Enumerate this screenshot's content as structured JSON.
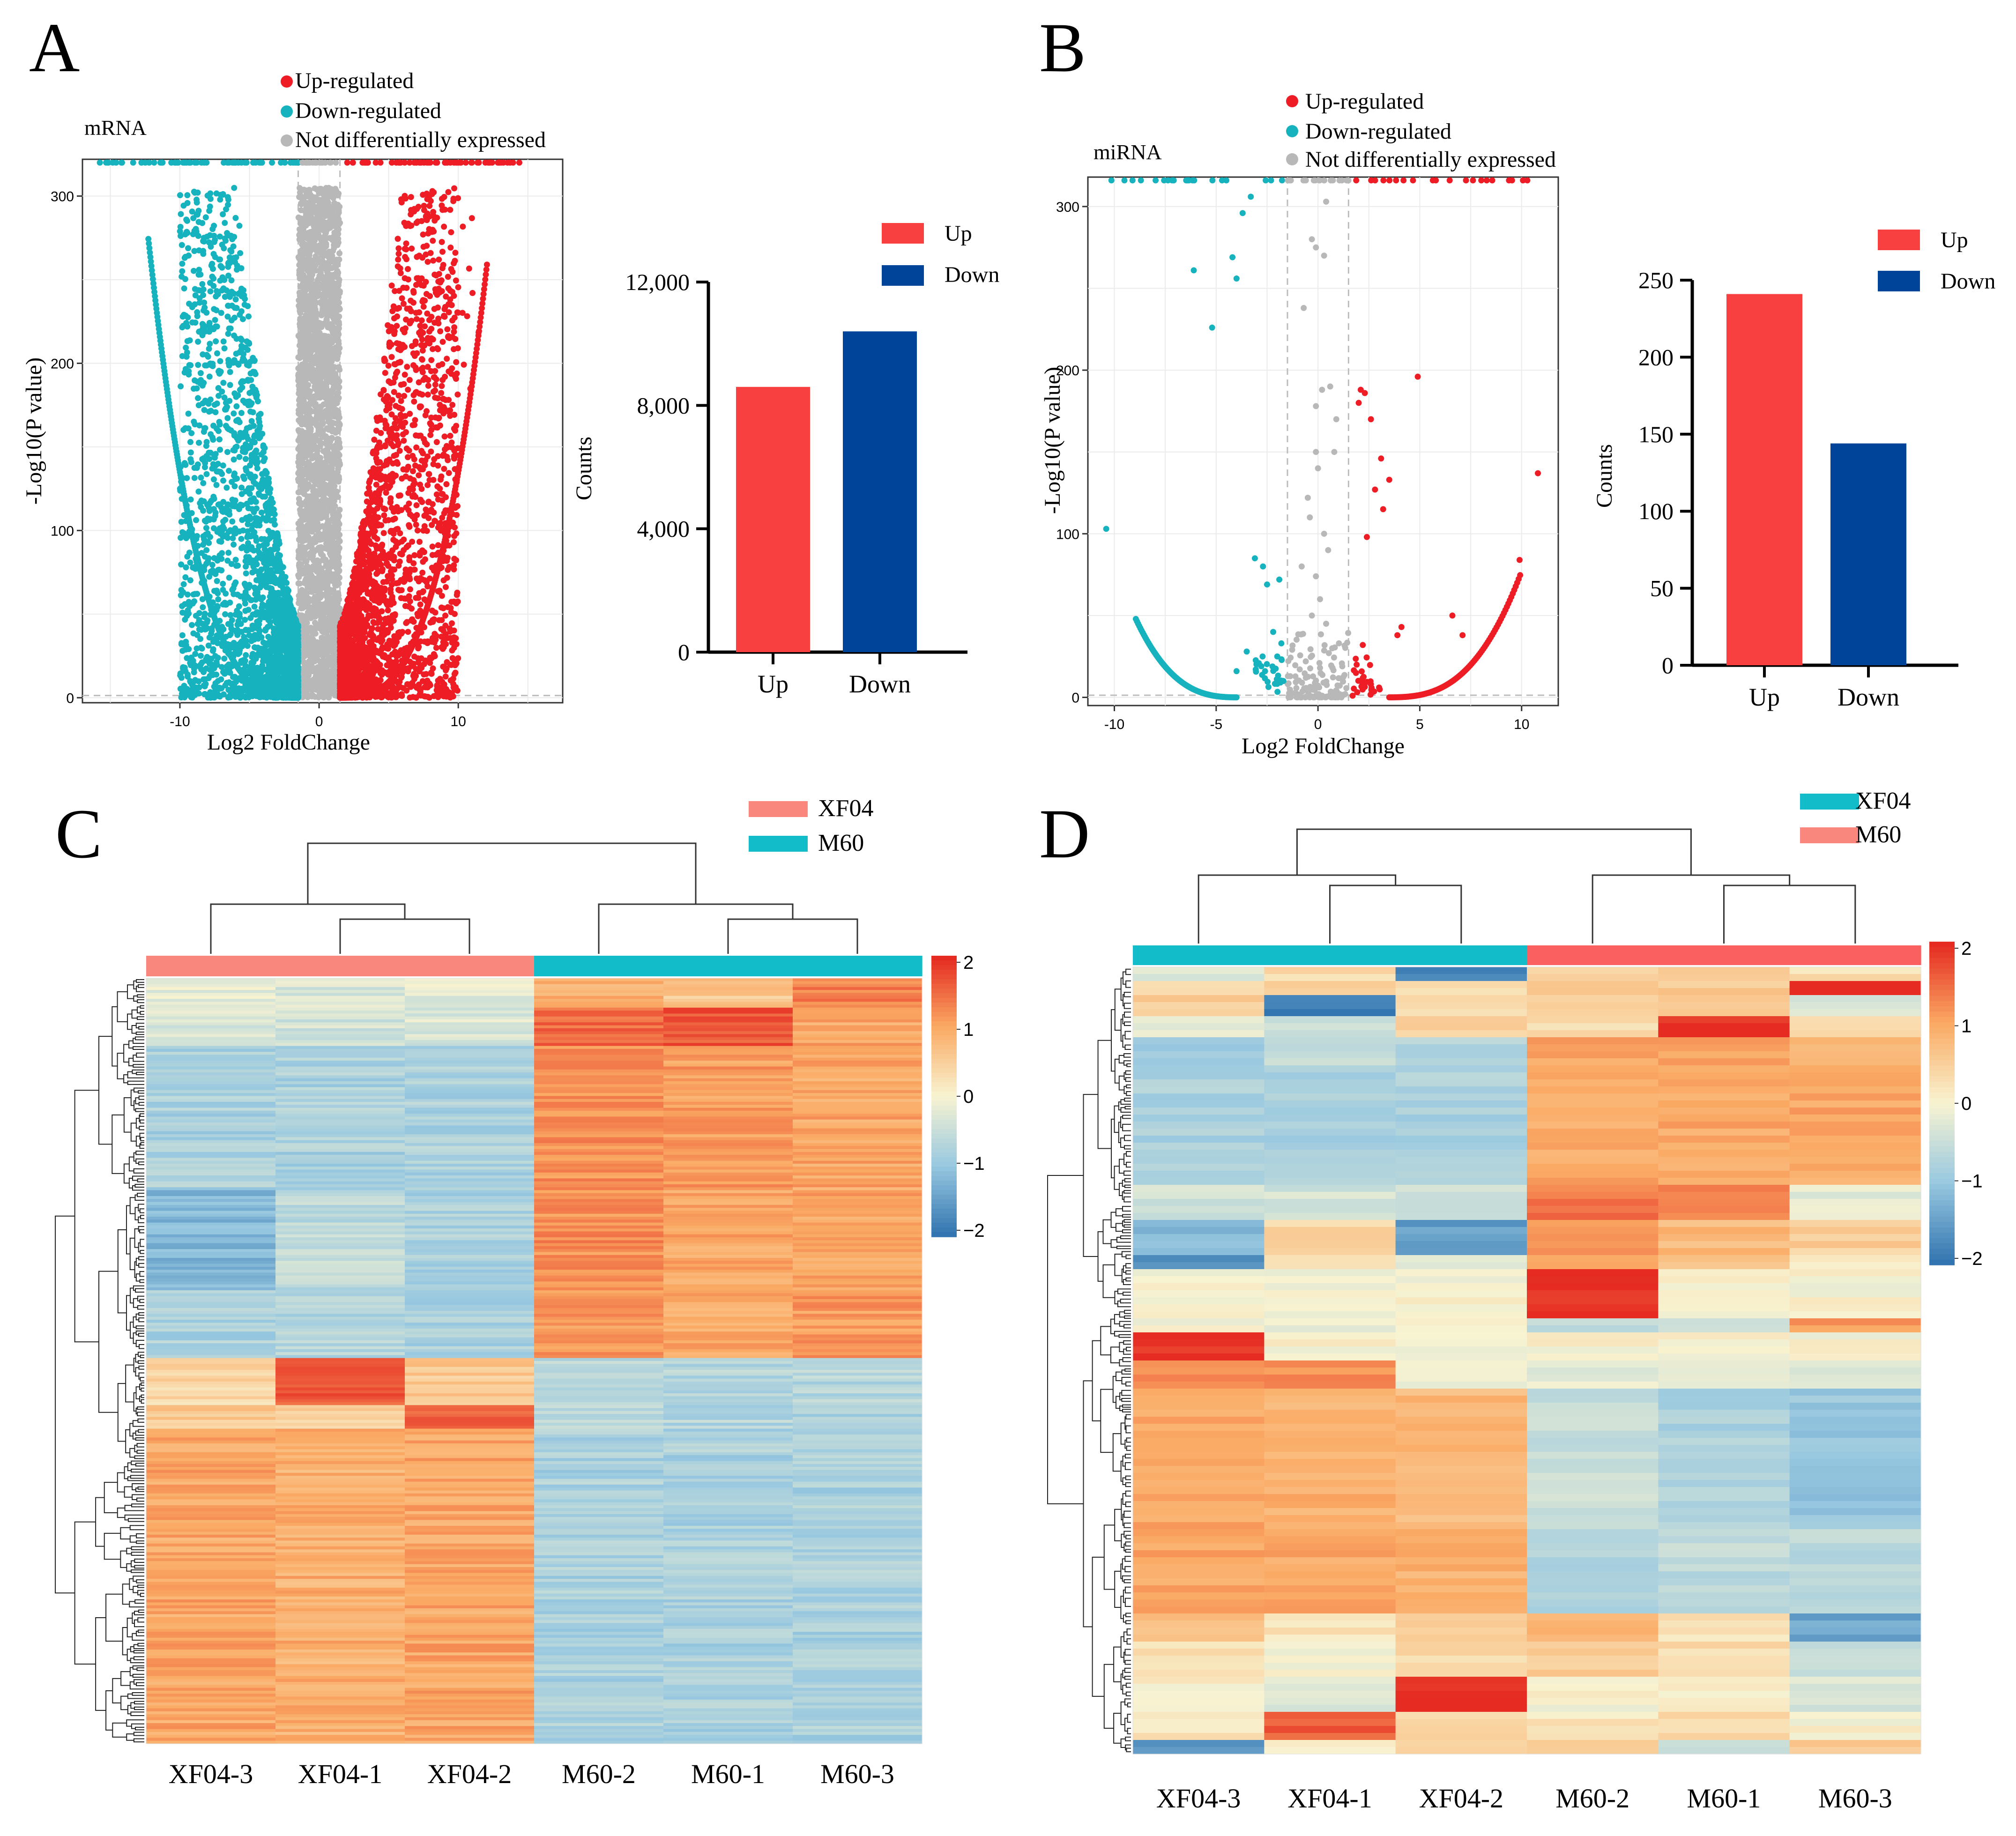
{
  "colors": {
    "up": "#ee1c25",
    "down": "#16b3bf",
    "ns": "#b8b8b8",
    "bar_up": "#f94040",
    "bar_down": "#00449a",
    "xf04_salmon": "#f9877e",
    "m60_teal": "#12bcc8",
    "grid": "#ebebeb",
    "threshold": "#bdbdbd"
  },
  "chart_data": [
    {
      "panel": "A",
      "type": "scatter",
      "title": "mRNA",
      "xlabel": "Log2 FoldChange",
      "ylabel": "-Log10(P value)",
      "xlim": [
        -17,
        17.5
      ],
      "ylim": [
        -3,
        322
      ],
      "xticks": [
        -10,
        0,
        10
      ],
      "yticks": [
        0,
        100,
        200,
        300
      ],
      "fc_threshold": 1.5,
      "legend": [
        "Up-regulated",
        "Down-regulated",
        "Not differentially expressed"
      ],
      "series": [
        {
          "name": "Up-regulated",
          "note": "log2FC > 1.5, dense cloud up to ~12 with upper boundary curve",
          "x_range": [
            1.5,
            14
          ],
          "y_range": [
            0,
            320
          ]
        },
        {
          "name": "Down-regulated",
          "note": "log2FC < -1.5, dense cloud down to ~-12 with boundary curve",
          "x_range": [
            -16,
            -1.5
          ],
          "y_range": [
            0,
            320
          ]
        },
        {
          "name": "Not differentially expressed",
          "note": "|log2FC| < 1.5",
          "x_range": [
            -1.5,
            1.5
          ],
          "y_range": [
            0,
            305
          ]
        }
      ]
    },
    {
      "panel": "A",
      "type": "bar",
      "categories": [
        "Up",
        "Down"
      ],
      "values": [
        8600,
        10400
      ],
      "xlabel": "",
      "ylabel": "Counts",
      "ylim": [
        0,
        12000
      ],
      "yticks": [
        0,
        4000,
        8000,
        12000
      ],
      "ytick_labels": [
        "0",
        "4,000",
        "8,000",
        "12,000"
      ],
      "legend": [
        "Up",
        "Down"
      ]
    },
    {
      "panel": "B",
      "type": "scatter",
      "title": "miRNA",
      "xlabel": "Log2 FoldChange",
      "ylabel": "-Log10(P value)",
      "xlim": [
        -11.3,
        11.8
      ],
      "ylim": [
        -5,
        318
      ],
      "xticks": [
        -10,
        -5,
        0,
        5,
        10
      ],
      "yticks": [
        0,
        100,
        200,
        300
      ],
      "fc_threshold": 1.5,
      "legend": [
        "Up-regulated",
        "Down-regulated",
        "Not differentially expressed"
      ],
      "up_points": [
        [
          2.1,
          188
        ],
        [
          2.3,
          186
        ],
        [
          2.0,
          180
        ],
        [
          2.6,
          170
        ],
        [
          3.1,
          146
        ],
        [
          3.5,
          133
        ],
        [
          2.8,
          127
        ],
        [
          3.2,
          115
        ],
        [
          4.9,
          196
        ],
        [
          10.8,
          137
        ],
        [
          9.9,
          84
        ],
        [
          6.6,
          50
        ],
        [
          4.1,
          43
        ],
        [
          3.9,
          38
        ],
        [
          7.1,
          38
        ],
        [
          2.4,
          98
        ],
        [
          2.2,
          32
        ],
        [
          1.9,
          20
        ],
        [
          2.6,
          8
        ],
        [
          3.0,
          6
        ]
      ],
      "down_points": [
        [
          -10.4,
          103
        ],
        [
          -6.1,
          261
        ],
        [
          -5.2,
          226
        ],
        [
          -4.2,
          269
        ],
        [
          -4.0,
          256
        ],
        [
          -3.7,
          296
        ],
        [
          -3.3,
          306
        ],
        [
          -3.1,
          85
        ],
        [
          -2.7,
          80
        ],
        [
          -2.5,
          69
        ],
        [
          -1.9,
          72
        ],
        [
          -2.2,
          40
        ],
        [
          -1.8,
          33
        ],
        [
          -2.0,
          25
        ],
        [
          -3.5,
          28
        ],
        [
          -4.0,
          16
        ],
        [
          -2.6,
          16
        ],
        [
          -1.7,
          10
        ]
      ],
      "ns_points": [
        [
          0.4,
          303
        ],
        [
          -0.3,
          280
        ],
        [
          -0.1,
          275
        ],
        [
          0.3,
          270
        ],
        [
          -0.7,
          238
        ],
        [
          0.6,
          190
        ],
        [
          0.2,
          188
        ],
        [
          -0.1,
          178
        ],
        [
          0.9,
          170
        ],
        [
          -0.1,
          150
        ],
        [
          0.8,
          150
        ],
        [
          0.0,
          140
        ],
        [
          -0.5,
          122
        ],
        [
          -0.4,
          110
        ],
        [
          0.3,
          100
        ],
        [
          0.5,
          90
        ],
        [
          -0.8,
          80
        ],
        [
          -0.1,
          74
        ],
        [
          0.1,
          60
        ],
        [
          -0.3,
          50
        ],
        [
          0.4,
          45
        ],
        [
          0.7,
          30
        ],
        [
          -0.6,
          22
        ],
        [
          0.1,
          18
        ]
      ],
      "up_curve": {
        "x_range": [
          3.5,
          10
        ],
        "note": "dense edge curve rising from ~0 at 3.5 to ~85 at 10"
      },
      "down_curve": {
        "x_range": [
          -9,
          -4
        ],
        "note": "dense edge curve from ~50 at -9 down to ~0 at -4"
      }
    },
    {
      "panel": "B",
      "type": "bar",
      "categories": [
        "Up",
        "Down"
      ],
      "values": [
        241,
        144
      ],
      "xlabel": "",
      "ylabel": "Counts",
      "ylim": [
        0,
        250
      ],
      "yticks": [
        0,
        50,
        100,
        150,
        200,
        250
      ],
      "ytick_labels": [
        "0",
        "50",
        "100",
        "150",
        "200",
        "250"
      ],
      "legend": [
        "Up",
        "Down"
      ]
    },
    {
      "panel": "C",
      "type": "heatmap",
      "columns": [
        "XF04-3",
        "XF04-1",
        "XF04-2",
        "M60-2",
        "M60-1",
        "M60-3"
      ],
      "column_groups": [
        "XF04",
        "XF04",
        "XF04",
        "M60",
        "M60",
        "M60"
      ],
      "legend": [
        "XF04",
        "M60"
      ],
      "scale": [
        -2,
        2
      ],
      "scale_ticks": [
        "2",
        "1",
        "0",
        "−1",
        "−2"
      ],
      "row_blocks": [
        {
          "fraction": 0.04,
          "values": [
            -0.2,
            -0.3,
            -0.2,
            0.9,
            0.6,
            1.3
          ]
        },
        {
          "fraction": 0.05,
          "values": [
            -0.3,
            -0.4,
            -0.3,
            1.5,
            1.7,
            1.0
          ]
        },
        {
          "fraction": 0.19,
          "values": [
            -0.8,
            -0.8,
            -0.8,
            1.2,
            1.1,
            1.0
          ]
        },
        {
          "fraction": 0.13,
          "values": [
            -1.2,
            -0.6,
            -0.8,
            1.2,
            1.0,
            1.0
          ]
        },
        {
          "fraction": 0.09,
          "values": [
            -0.8,
            -0.7,
            -0.8,
            1.1,
            1.0,
            1.1
          ]
        },
        {
          "fraction": 0.06,
          "values": [
            0.4,
            1.6,
            0.6,
            -0.6,
            -0.7,
            -0.7
          ]
        },
        {
          "fraction": 0.03,
          "values": [
            0.6,
            0.5,
            1.5,
            -0.7,
            -0.7,
            -0.8
          ]
        },
        {
          "fraction": 0.41,
          "values": [
            1.0,
            0.9,
            1.0,
            -0.8,
            -0.8,
            -0.8
          ]
        }
      ]
    },
    {
      "panel": "D",
      "type": "heatmap",
      "columns": [
        "XF04-3",
        "XF04-1",
        "XF04-2",
        "M60-2",
        "M60-1",
        "M60-3"
      ],
      "column_groups": [
        "XF04",
        "XF04",
        "XF04",
        "M60",
        "M60",
        "M60"
      ],
      "legend": [
        "XF04",
        "M60"
      ],
      "scale": [
        -2,
        2
      ],
      "scale_ticks": [
        "2",
        "1",
        "0",
        "−1",
        "−2"
      ],
      "row_blocks": [
        {
          "fraction": 0.015,
          "values": [
            -0.3,
            0.3,
            -1.8,
            0.3,
            0.5,
            0.3
          ]
        },
        {
          "fraction": 0.02,
          "values": [
            0.3,
            0.4,
            0.3,
            0.6,
            0.6,
            2.0
          ]
        },
        {
          "fraction": 0.025,
          "values": [
            0.5,
            -1.9,
            0.4,
            0.4,
            0.5,
            -0.3
          ]
        },
        {
          "fraction": 0.025,
          "values": [
            -0.2,
            -0.4,
            0.4,
            0.3,
            2.0,
            0.3
          ]
        },
        {
          "fraction": 0.03,
          "values": [
            -0.9,
            -0.6,
            -0.7,
            1.0,
            1.0,
            0.9
          ]
        },
        {
          "fraction": 0.14,
          "values": [
            -0.8,
            -0.8,
            -0.8,
            1.0,
            1.0,
            1.0
          ]
        },
        {
          "fraction": 0.04,
          "values": [
            -0.4,
            -0.4,
            -0.4,
            1.4,
            1.3,
            -0.2
          ]
        },
        {
          "fraction": 0.04,
          "values": [
            -1.2,
            0.4,
            -1.5,
            1.2,
            0.8,
            0.5
          ]
        },
        {
          "fraction": 0.02,
          "values": [
            -1.6,
            0.1,
            -0.2,
            1.0,
            0.6,
            0.2
          ]
        },
        {
          "fraction": 0.055,
          "values": [
            0.0,
            0.0,
            0.0,
            2.0,
            0.0,
            0.0
          ]
        },
        {
          "fraction": 0.015,
          "values": [
            0.0,
            -0.2,
            0.0,
            -0.6,
            -0.3,
            1.1
          ]
        },
        {
          "fraction": 0.035,
          "values": [
            2.0,
            0.0,
            0.0,
            0.0,
            0.0,
            0.0
          ]
        },
        {
          "fraction": 0.03,
          "values": [
            1.2,
            1.2,
            -0.2,
            -0.2,
            -0.2,
            -0.2
          ]
        },
        {
          "fraction": 0.17,
          "values": [
            1.0,
            0.9,
            0.8,
            -0.5,
            -0.8,
            -1.0
          ]
        },
        {
          "fraction": 0.1,
          "values": [
            1.0,
            1.0,
            0.9,
            -0.7,
            -0.6,
            -0.6
          ]
        },
        {
          "fraction": 0.035,
          "values": [
            0.7,
            0.2,
            0.4,
            0.9,
            0.2,
            -1.4
          ]
        },
        {
          "fraction": 0.04,
          "values": [
            0.3,
            0.0,
            0.4,
            0.5,
            0.3,
            -0.6
          ]
        },
        {
          "fraction": 0.04,
          "values": [
            0.1,
            -0.3,
            2.0,
            0.0,
            0.0,
            -0.3
          ]
        },
        {
          "fraction": 0.03,
          "values": [
            0.2,
            1.6,
            0.4,
            0.2,
            0.4,
            0.0
          ]
        },
        {
          "fraction": 0.015,
          "values": [
            -1.6,
            0.0,
            0.4,
            0.5,
            -0.4,
            0.5
          ]
        }
      ]
    }
  ],
  "panel_labels": {
    "a": "A",
    "b": "B",
    "c": "C",
    "d": "D"
  }
}
